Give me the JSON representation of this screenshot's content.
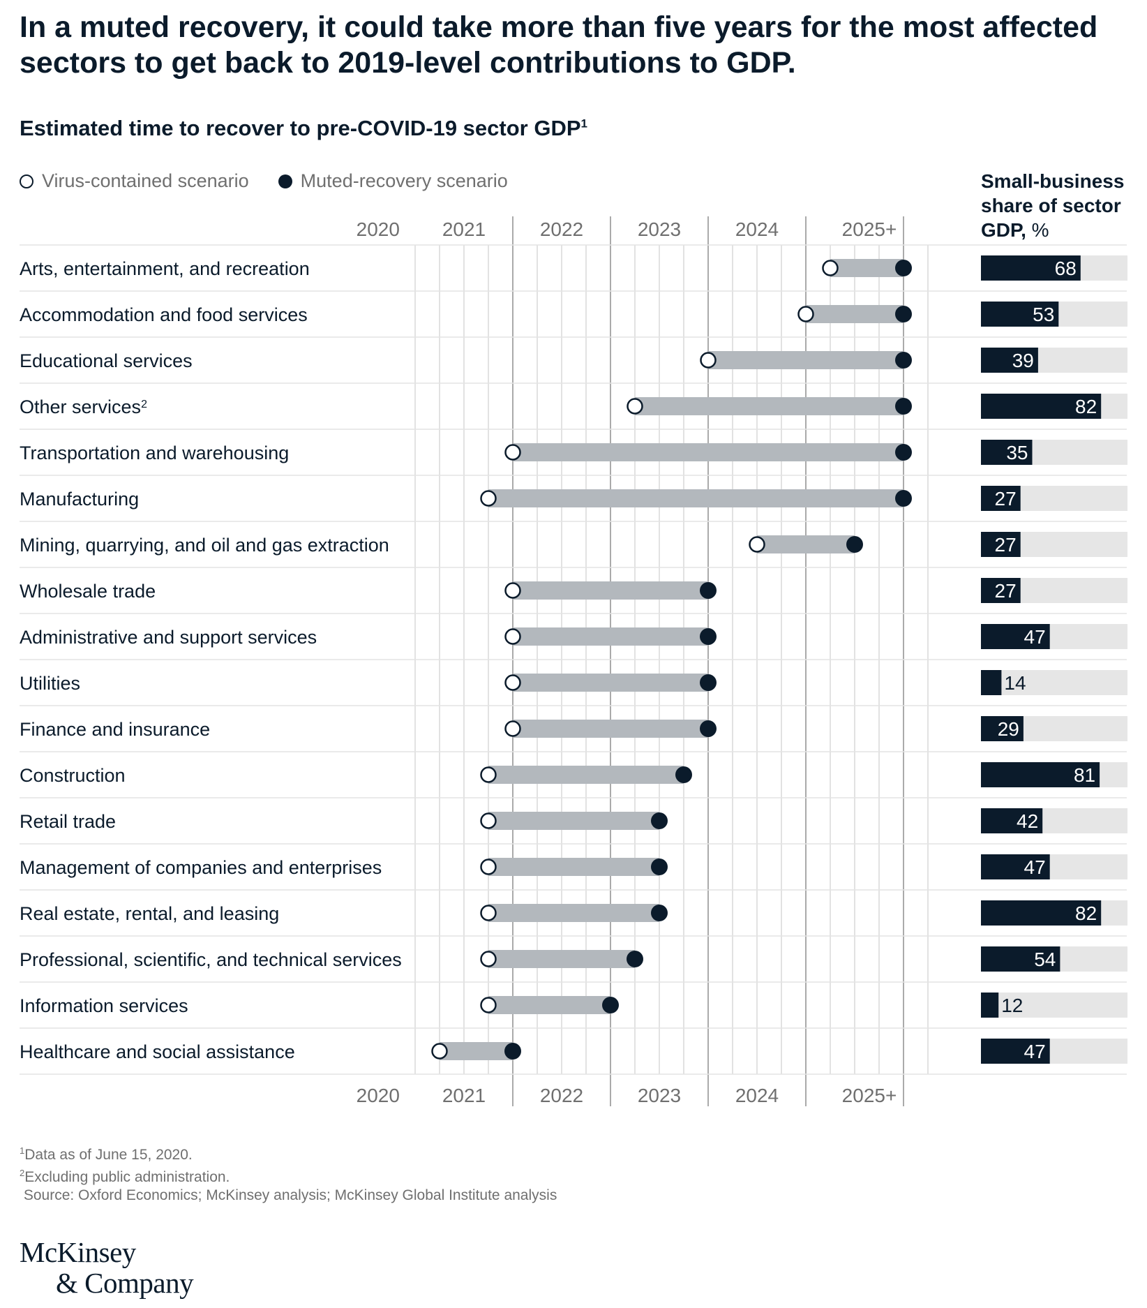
{
  "title": "In a muted recovery, it could take more than five years for the most affected sectors to get back to 2019-level contributions to GDP.",
  "subtitle": "Estimated time to recover to pre-COVID-19 sector GDP",
  "subtitle_sup": "1",
  "legend": {
    "open_label": "Virus-contained scenario",
    "filled_label": "Muted-recovery scenario"
  },
  "small_business_header": {
    "line1": "Small-business",
    "line2": "share of sector",
    "line3": "GDP,",
    "unit": " %"
  },
  "colors": {
    "dark": "#0b1b2b",
    "bar_grey": "#b3b8bd",
    "bg_bar": "#e6e6e6",
    "grid": "#d9d9d9",
    "year_grid": "#aaaaaa",
    "muted_text": "#6f6f6f"
  },
  "chart_data": {
    "type": "dumbbell",
    "x_axis_labels": [
      "2020",
      "2021",
      "2022",
      "2023",
      "2024",
      "2025+"
    ],
    "x_unit": "years",
    "xlim": [
      2020,
      2025.25
    ],
    "grid": "quarterly vertical lines; year boundaries emphasized",
    "legend_position": "top-left",
    "series": [
      {
        "name": "Virus-contained scenario",
        "marker": "open circle"
      },
      {
        "name": "Muted-recovery scenario",
        "marker": "filled circle"
      }
    ],
    "rows": [
      {
        "label": "Arts, entertainment, and recreation",
        "sup": "",
        "virus_contained": 2024.25,
        "muted_recovery": 2025.0,
        "small_business_share": 68
      },
      {
        "label": "Accommodation and food services",
        "sup": "",
        "virus_contained": 2024.0,
        "muted_recovery": 2025.0,
        "small_business_share": 53
      },
      {
        "label": "Educational services",
        "sup": "",
        "virus_contained": 2023.0,
        "muted_recovery": 2025.0,
        "small_business_share": 39
      },
      {
        "label": "Other services",
        "sup": "2",
        "virus_contained": 2022.25,
        "muted_recovery": 2025.0,
        "small_business_share": 82
      },
      {
        "label": "Transportation and warehousing",
        "sup": "",
        "virus_contained": 2021.0,
        "muted_recovery": 2025.0,
        "small_business_share": 35
      },
      {
        "label": "Manufacturing",
        "sup": "",
        "virus_contained": 2020.75,
        "muted_recovery": 2025.0,
        "small_business_share": 27
      },
      {
        "label": "Mining, quarrying, and oil and gas extraction",
        "sup": "",
        "virus_contained": 2023.5,
        "muted_recovery": 2024.5,
        "small_business_share": 27
      },
      {
        "label": "Wholesale trade",
        "sup": "",
        "virus_contained": 2021.0,
        "muted_recovery": 2023.0,
        "small_business_share": 27
      },
      {
        "label": "Administrative and support services",
        "sup": "",
        "virus_contained": 2021.0,
        "muted_recovery": 2023.0,
        "small_business_share": 47
      },
      {
        "label": "Utilities",
        "sup": "",
        "virus_contained": 2021.0,
        "muted_recovery": 2023.0,
        "small_business_share": 14
      },
      {
        "label": "Finance and insurance",
        "sup": "",
        "virus_contained": 2021.0,
        "muted_recovery": 2023.0,
        "small_business_share": 29
      },
      {
        "label": "Construction",
        "sup": "",
        "virus_contained": 2020.75,
        "muted_recovery": 2022.75,
        "small_business_share": 81
      },
      {
        "label": "Retail trade",
        "sup": "",
        "virus_contained": 2020.75,
        "muted_recovery": 2022.5,
        "small_business_share": 42
      },
      {
        "label": "Management of companies and enterprises",
        "sup": "",
        "virus_contained": 2020.75,
        "muted_recovery": 2022.5,
        "small_business_share": 47
      },
      {
        "label": "Real estate, rental, and leasing",
        "sup": "",
        "virus_contained": 2020.75,
        "muted_recovery": 2022.5,
        "small_business_share": 82
      },
      {
        "label": "Professional, scientific, and technical services",
        "sup": "",
        "virus_contained": 2020.75,
        "muted_recovery": 2022.25,
        "small_business_share": 54
      },
      {
        "label": "Information services",
        "sup": "",
        "virus_contained": 2020.75,
        "muted_recovery": 2022.0,
        "small_business_share": 12
      },
      {
        "label": "Healthcare and social assistance",
        "sup": "",
        "virus_contained": 2020.25,
        "muted_recovery": 2021.0,
        "small_business_share": 47
      }
    ],
    "small_business_share_max": 100
  },
  "footnotes": {
    "f1_sup": "1",
    "f1": "Data as of June 15, 2020.",
    "f2_sup": "2",
    "f2": "Excluding public administration.",
    "source": "Source: Oxford Economics; McKinsey analysis; McKinsey Global Institute analysis"
  },
  "logo": {
    "line1": "McKinsey",
    "line2": "& Company"
  }
}
